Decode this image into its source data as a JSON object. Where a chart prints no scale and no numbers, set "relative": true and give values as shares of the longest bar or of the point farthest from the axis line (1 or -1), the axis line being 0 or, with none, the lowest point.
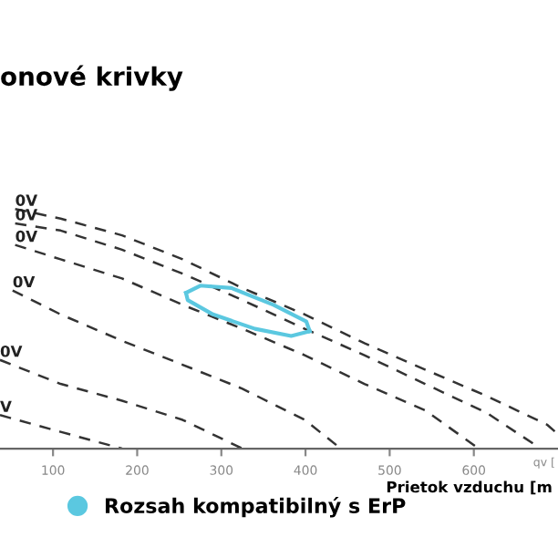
{
  "chart_data": {
    "type": "line",
    "title": "onové krivky",
    "xlabel": "Prietok vzduchu [m",
    "relative": true,
    "xlim": [
      37,
      700
    ],
    "xticks": [
      100,
      200,
      300,
      400,
      500,
      600
    ],
    "line_style": "dashed",
    "marker": "none",
    "grid": false,
    "legend": "bottom left",
    "annotations": [
      "qv ["
    ],
    "series": [
      {
        "name": "0V",
        "color": "#333333",
        "x": [
          55,
          109,
          182,
          254,
          325,
          399,
          470,
          542,
          615,
          687,
          700
        ],
        "values": [
          1,
          0.96,
          0.89,
          0.79,
          0.67,
          0.56,
          0.44,
          0.33,
          0.22,
          0.1,
          0.06
        ]
      },
      {
        "name": "0V",
        "color": "#333333",
        "x": [
          55,
          109,
          182,
          254,
          325,
          399,
          470,
          542,
          615,
          671
        ],
        "values": [
          0.94,
          0.91,
          0.83,
          0.73,
          0.62,
          0.5,
          0.39,
          0.27,
          0.15,
          0.02
        ]
      },
      {
        "name": "0V",
        "color": "#333333",
        "x": [
          55,
          109,
          182,
          254,
          325,
          399,
          470,
          542,
          606
        ],
        "values": [
          0.85,
          0.79,
          0.71,
          0.6,
          0.5,
          0.39,
          0.27,
          0.16,
          0
        ]
      },
      {
        "name": "0V",
        "color": "#333333",
        "x": [
          52,
          109,
          182,
          254,
          325,
          399,
          442
        ],
        "values": [
          0.66,
          0.56,
          0.45,
          0.35,
          0.25,
          0.12,
          0
        ]
      },
      {
        "name": "0V",
        "color": "#333333",
        "x": [
          37,
          109,
          182,
          254,
          325
        ],
        "values": [
          0.37,
          0.27,
          0.2,
          0.12,
          0
        ]
      },
      {
        "name": "V",
        "color": "#333333",
        "x": [
          37,
          109,
          182
        ],
        "values": [
          0.14,
          0.07,
          0
        ]
      },
      {
        "name": "Rozsah kompatibilný s ErP",
        "color": "#5bc8e0",
        "line_style": "solid",
        "x": [
          258,
          275,
          312,
          362,
          401,
          405
        ],
        "values": [
          0.65,
          0.68,
          0.67,
          0.6,
          0.53,
          0.49
        ]
      },
      {
        "color": "#5bc8e0",
        "line_style": "solid",
        "x": [
          258,
          260,
          290,
          340,
          383,
          405
        ],
        "values": [
          0.65,
          0.62,
          0.56,
          0.5,
          0.47,
          0.49
        ]
      }
    ]
  }
}
